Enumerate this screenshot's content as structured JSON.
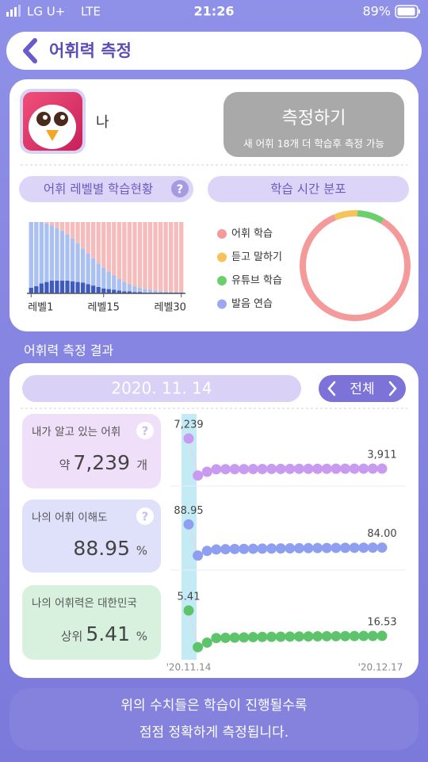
{
  "status_bar": {
    "carrier": "LG U+",
    "network": "LTE",
    "time": "21:26",
    "battery": "89%"
  },
  "header": {
    "title": "어휘력 측정"
  },
  "profile": {
    "name": "나"
  },
  "measure_button": {
    "title": "측정하기",
    "subtitle": "새 어휘 18개 더 학습후 측정 가능"
  },
  "level_chart": {
    "type": "bar",
    "title": "어휘 레벨별 학습현황",
    "x_labels": [
      "레벨1",
      "레벨15",
      "레벨30"
    ],
    "ylim": [
      0,
      100
    ],
    "series": [
      {
        "color": "#3e5cc0",
        "values": [
          8,
          10,
          14,
          16,
          18,
          18,
          18,
          18,
          17,
          16,
          15,
          13,
          11,
          9,
          7,
          6,
          5,
          4,
          3,
          3,
          2,
          2,
          1,
          1,
          1,
          1,
          1,
          1,
          1,
          1
        ]
      },
      {
        "color": "#a9c0f0",
        "values": [
          92,
          90,
          86,
          82,
          77,
          74,
          70,
          65,
          60,
          54,
          48,
          43,
          38,
          33,
          29,
          24,
          20,
          16,
          13,
          10,
          8,
          6,
          5,
          4,
          3,
          2,
          2,
          1,
          1,
          1
        ]
      },
      {
        "color": "#f6bcbc",
        "values": [
          0,
          0,
          0,
          2,
          5,
          8,
          12,
          17,
          23,
          30,
          37,
          44,
          51,
          58,
          64,
          70,
          75,
          80,
          84,
          87,
          90,
          92,
          94,
          95,
          96,
          97,
          97,
          98,
          98,
          98
        ]
      }
    ]
  },
  "time_chart": {
    "type": "pie",
    "title": "학습 시간 분포",
    "categories": [
      "어휘 학습",
      "듣고 말하기",
      "유튜브 학습",
      "발음 연습"
    ],
    "values": [
      85,
      7,
      8,
      0
    ],
    "colors": [
      "#f59a9a",
      "#f6c35a",
      "#6ccf6c",
      "#9ea8f0"
    ]
  },
  "results": {
    "title": "어휘력 측정 결과",
    "date": "2020. 11. 14",
    "filter": "전체",
    "x_labels": [
      "'20.11.14",
      "'20.12.17"
    ],
    "metrics": [
      {
        "label": "내가 알고 있는 어휘",
        "prefix": "약",
        "value": "7,239",
        "unit": "개",
        "color": "#c99bf0",
        "card": "#efdff9",
        "chart": {
          "type": "line",
          "ylim": [
            2250,
            9250
          ],
          "first_label": "7,239",
          "last_label": "3,911",
          "values": [
            7239,
            3150,
            3560,
            3840,
            3850,
            3855,
            3860,
            3865,
            3870,
            3875,
            3880,
            3885,
            3888,
            3890,
            3893,
            3896,
            3899,
            3902,
            3905,
            3907,
            3909,
            3911
          ]
        }
      },
      {
        "label": "나의 어휘 이해도",
        "value": "88.95",
        "unit": "%",
        "color": "#8f9ff0",
        "card": "#dfe0f9",
        "chart": {
          "type": "line",
          "ylim": [
            79.7,
            92.9
          ],
          "first_label": "88.95",
          "last_label": "84.00",
          "values": [
            88.95,
            82.3,
            83.3,
            83.6,
            83.65,
            83.7,
            83.72,
            83.75,
            83.78,
            83.8,
            83.82,
            83.84,
            83.86,
            83.88,
            83.9,
            83.92,
            83.94,
            83.95,
            83.96,
            83.97,
            83.99,
            84.0
          ]
        }
      },
      {
        "label": "나의 어휘력은 대한민국",
        "prefix": "상위",
        "value": "5.41",
        "unit": "%",
        "color": "#5ec46c",
        "card": "#d8f1de",
        "chart": {
          "type": "line",
          "ylim": [
            24.9,
            -2.9
          ],
          "first_label": "5.41",
          "last_label": "16.53",
          "values": [
            5.41,
            21.5,
            19.5,
            17.5,
            17.4,
            17.3,
            17.2,
            17.1,
            17.0,
            16.95,
            16.9,
            16.85,
            16.8,
            16.77,
            16.74,
            16.7,
            16.67,
            16.64,
            16.6,
            16.58,
            16.55,
            16.53
          ]
        }
      }
    ]
  },
  "footer": {
    "lines": [
      "위의 수치들은 학습이 진행될수록",
      "점점 정확하게 측정됩니다."
    ]
  }
}
